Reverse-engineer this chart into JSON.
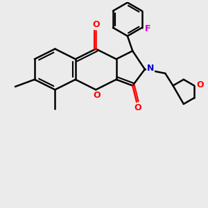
{
  "bg_color": "#ebebeb",
  "bond_color": "#000000",
  "bond_width": 1.8,
  "figsize": [
    3.0,
    3.0
  ],
  "dpi": 100,
  "atom_colors": {
    "O": "#ff0000",
    "N": "#0000cc",
    "F": "#cc00cc"
  }
}
